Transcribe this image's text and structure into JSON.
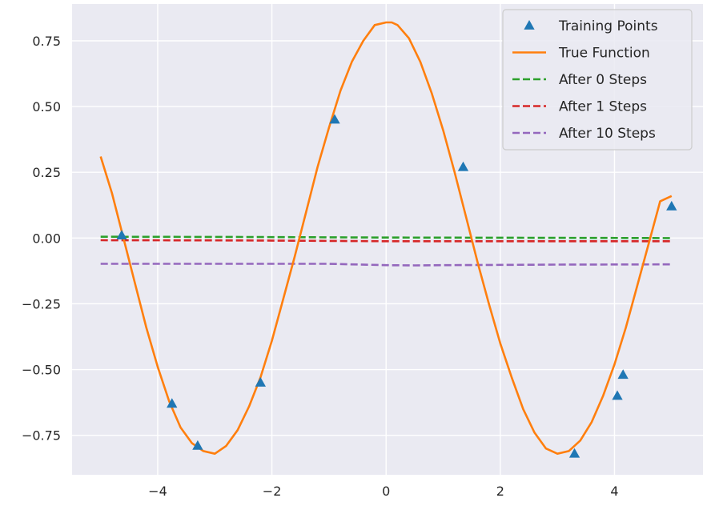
{
  "chart_data": {
    "type": "line",
    "title": "",
    "xlabel": "",
    "ylabel": "",
    "xlim": [
      -5.5,
      5.55
    ],
    "ylim": [
      -0.9,
      0.89
    ],
    "grid": true,
    "legend_position": "top-right",
    "x_ticks": [
      -4,
      -2,
      0,
      2,
      4
    ],
    "x_tick_labels": [
      "−4",
      "−2",
      "0",
      "2",
      "4"
    ],
    "y_ticks": [
      0.75,
      0.5,
      0.25,
      0.0,
      -0.25,
      -0.5,
      -0.75
    ],
    "y_tick_labels": [
      "0.75",
      "0.50",
      "0.25",
      "0.00",
      "−0.25",
      "−0.50",
      "−0.75"
    ],
    "series": [
      {
        "name": "Training Points",
        "kind": "scatter",
        "marker": "triangle",
        "color": "#1f77b4",
        "x": [
          -4.63,
          -3.75,
          -3.3,
          -2.2,
          -0.9,
          1.35,
          3.3,
          4.05,
          4.15,
          5.0
        ],
        "y": [
          0.01,
          -0.63,
          -0.79,
          -0.55,
          0.45,
          0.27,
          -0.82,
          -0.6,
          -0.52,
          0.12
        ]
      },
      {
        "name": "True Function",
        "kind": "line",
        "style": "solid",
        "color": "#ff7f0e",
        "x": [
          -5.0,
          -4.8,
          -4.6,
          -4.4,
          -4.2,
          -4.0,
          -3.8,
          -3.6,
          -3.4,
          -3.2,
          -3.0,
          -2.8,
          -2.6,
          -2.4,
          -2.2,
          -2.0,
          -1.8,
          -1.6,
          -1.4,
          -1.2,
          -1.0,
          -0.8,
          -0.6,
          -0.4,
          -0.2,
          0.0,
          0.1,
          0.2,
          0.4,
          0.6,
          0.8,
          1.0,
          1.2,
          1.4,
          1.6,
          1.8,
          2.0,
          2.2,
          2.4,
          2.6,
          2.8,
          3.0,
          3.2,
          3.4,
          3.6,
          3.8,
          4.0,
          4.2,
          4.4,
          4.6,
          4.8,
          5.0
        ],
        "y": [
          0.31,
          0.17,
          0.0,
          -0.17,
          -0.34,
          -0.49,
          -0.62,
          -0.72,
          -0.78,
          -0.81,
          -0.82,
          -0.79,
          -0.73,
          -0.64,
          -0.53,
          -0.39,
          -0.23,
          -0.07,
          0.1,
          0.27,
          0.42,
          0.56,
          0.67,
          0.75,
          0.81,
          0.82,
          0.82,
          0.81,
          0.76,
          0.67,
          0.55,
          0.41,
          0.25,
          0.08,
          -0.09,
          -0.25,
          -0.4,
          -0.53,
          -0.65,
          -0.74,
          -0.8,
          -0.82,
          -0.81,
          -0.77,
          -0.7,
          -0.6,
          -0.48,
          -0.34,
          -0.18,
          -0.02,
          0.14,
          0.16
        ]
      },
      {
        "name": "After 0 Steps",
        "kind": "line",
        "style": "dashed",
        "color": "#2ca02c",
        "x": [
          -5.0,
          -2.5,
          0.0,
          2.5,
          5.0
        ],
        "y": [
          0.005,
          0.004,
          0.002,
          0.001,
          0.0
        ]
      },
      {
        "name": "After 1 Steps",
        "kind": "line",
        "style": "dashed",
        "color": "#d62728",
        "x": [
          -5.0,
          -2.5,
          0.0,
          2.5,
          5.0
        ],
        "y": [
          -0.008,
          -0.009,
          -0.012,
          -0.012,
          -0.012
        ]
      },
      {
        "name": "After 10 Steps",
        "kind": "line",
        "style": "dashed",
        "color": "#9467bd",
        "x": [
          -5.0,
          -3.0,
          -1.0,
          0.0,
          0.5,
          1.0,
          3.0,
          5.0
        ],
        "y": [
          -0.098,
          -0.098,
          -0.098,
          -0.103,
          -0.104,
          -0.103,
          -0.101,
          -0.1
        ]
      }
    ]
  },
  "colors": {
    "plot_background": "#eaeaf2",
    "grid": "#ffffff",
    "legend_background": "#eaeaf2",
    "legend_border": "#cccccc"
  }
}
